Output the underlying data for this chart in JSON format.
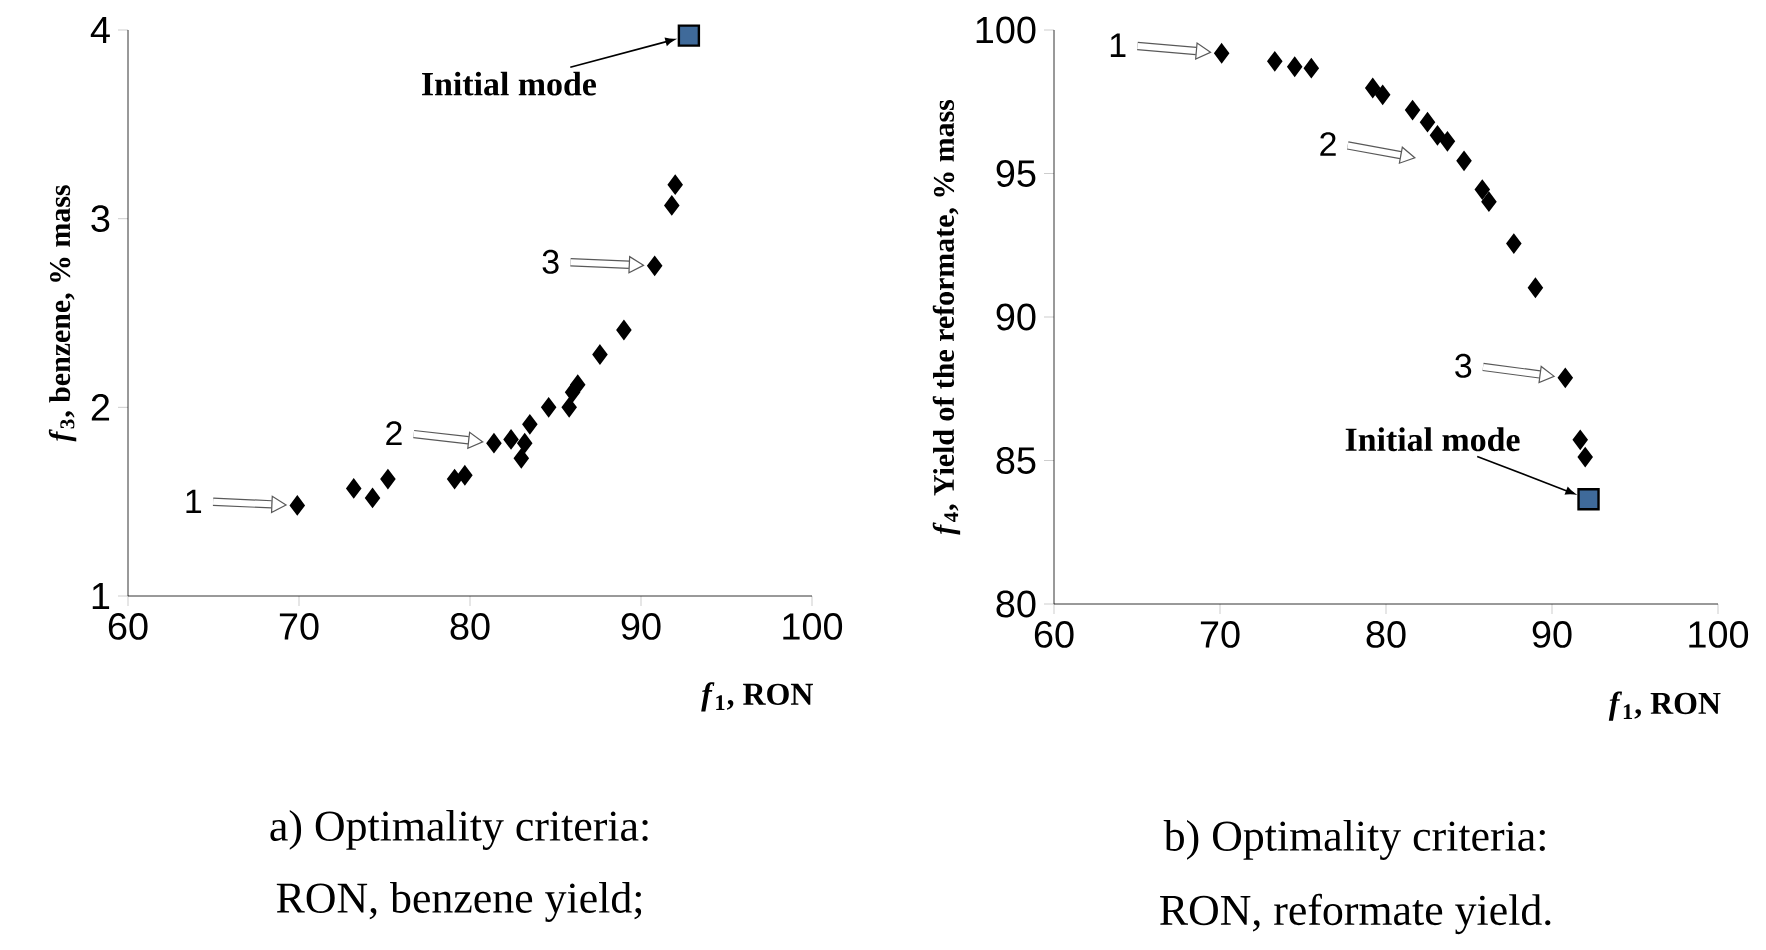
{
  "chart_data": [
    {
      "type": "scatter",
      "xlabel": "*f*$_{1}$, RON",
      "ylabel": "*f*$_{3}$, benzene, % mass",
      "xlim": [
        60,
        100
      ],
      "xticks": [
        60,
        70,
        80,
        90,
        100
      ],
      "ylim": [
        1,
        4
      ],
      "yticks": [
        1,
        2,
        3,
        4
      ],
      "grid": false,
      "series": [
        {
          "color": "#000000",
          "marker": "diamond",
          "x": [
            69.9,
            73.2,
            74.3,
            75.2,
            79.1,
            79.7,
            81.4,
            82.4,
            83.2,
            83.0,
            83.5,
            84.6,
            85.8,
            86.0,
            86.3,
            87.6,
            89.0,
            90.8,
            91.8,
            92.0
          ],
          "values": [
            1.48,
            1.57,
            1.52,
            1.62,
            1.62,
            1.64,
            1.81,
            1.83,
            1.81,
            1.73,
            1.91,
            2.0,
            2.0,
            2.08,
            2.12,
            2.28,
            2.41,
            2.75,
            3.07,
            3.18
          ]
        },
        {
          "color": "#3f6a9a",
          "marker": "square",
          "x": [
            92.8
          ],
          "values": [
            3.97
          ]
        }
      ],
      "annotations": [
        {
          "text": "1",
          "x": 69.9,
          "y": 1.48
        },
        {
          "text": "2",
          "x": 81.4,
          "y": 1.81
        },
        {
          "text": "3",
          "x": 90.8,
          "y": 2.75
        },
        {
          "text": "Initial mode",
          "x": 92.8,
          "y": 3.97
        },
        "a) Optimality criteria:",
        "RON, benzene yield;"
      ]
    },
    {
      "type": "scatter",
      "xlabel": "*f*$_{1}$, RON",
      "ylabel": "*f*$_{4}$, Yield of the reformate, % mass",
      "xlim": [
        60,
        100
      ],
      "xticks": [
        60,
        70,
        80,
        90,
        100
      ],
      "ylim": [
        80,
        100
      ],
      "yticks": [
        80,
        85,
        90,
        95,
        100
      ],
      "grid": false,
      "series": [
        {
          "color": "#000000",
          "marker": "diamond",
          "x": [
            70.1,
            73.3,
            74.5,
            75.5,
            79.2,
            79.8,
            81.6,
            82.5,
            83.1,
            83.7,
            84.7,
            85.8,
            86.2,
            87.7,
            89.0,
            90.8,
            91.7,
            92.0
          ],
          "values": [
            99.19,
            98.91,
            98.72,
            98.67,
            97.98,
            97.74,
            97.21,
            96.79,
            96.33,
            96.12,
            95.44,
            94.44,
            94.02,
            92.56,
            91.02,
            87.88,
            85.72,
            85.12
          ]
        },
        {
          "color": "#3f6a9a",
          "marker": "square",
          "x": [
            92.2
          ],
          "values": [
            83.65
          ]
        }
      ],
      "annotations": [
        {
          "text": "1",
          "x": 70.1,
          "y": 99.19
        },
        "2",
        {
          "text": "3",
          "x": 90.8,
          "y": 87.88
        },
        {
          "text": "Initial mode",
          "x": 92.2,
          "y": 83.65
        },
        "b) Optimality criteria:",
        "RON, reformate yield."
      ]
    }
  ]
}
